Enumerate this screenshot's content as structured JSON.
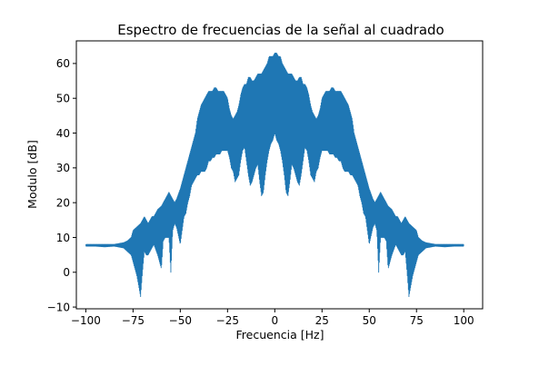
{
  "chart_data": {
    "type": "line",
    "title": "Espectro de frecuencias de la señal al cuadrado",
    "xlabel": "Frecuencia [Hz]",
    "ylabel": "Modulo [dB]",
    "xlim": [
      -105,
      110
    ],
    "ylim": [
      -10.5,
      66.5
    ],
    "xticks": [
      -100,
      -75,
      -50,
      -25,
      0,
      25,
      50,
      75,
      100
    ],
    "xtick_labels": [
      "−100",
      "−75",
      "−50",
      "−25",
      "0",
      "25",
      "50",
      "75",
      "100"
    ],
    "yticks": [
      -10,
      0,
      10,
      20,
      30,
      40,
      50,
      60
    ],
    "ytick_labels": [
      "−10",
      "0",
      "10",
      "20",
      "30",
      "40",
      "50",
      "60"
    ],
    "grid": false,
    "legend": "none",
    "line_color": "#1f77b4",
    "series": [
      {
        "x": [
          -100,
          -95,
          -90,
          -85,
          -80,
          -78,
          -76,
          -75,
          -73,
          -71,
          -70,
          -69,
          -68,
          -67,
          -66,
          -65,
          -64,
          -62,
          -60,
          -59,
          -58,
          -56,
          -55,
          -54,
          -53,
          -52,
          -50,
          -49,
          -48,
          -47,
          -46,
          -45,
          -44,
          -43,
          -42,
          -41,
          -40,
          -39,
          -38,
          -37,
          -36,
          -35,
          -34,
          -33,
          -32,
          -31,
          -30,
          -29,
          -28,
          -27,
          -26,
          -25,
          -24,
          -23,
          -22,
          -21,
          -20,
          -19,
          -18,
          -17,
          -16,
          -15,
          -14,
          -13,
          -12,
          -11,
          -10,
          -9,
          -8,
          -7,
          -6,
          -5,
          -4,
          -3,
          -2,
          -1,
          0,
          1,
          2,
          3,
          4,
          5,
          6,
          7,
          8,
          9,
          10,
          11,
          12,
          13,
          14,
          15,
          16,
          17,
          18,
          19,
          20,
          21,
          22,
          23,
          24,
          25,
          26,
          27,
          28,
          29,
          30,
          31,
          32,
          33,
          34,
          35,
          36,
          37,
          38,
          39,
          40,
          41,
          42,
          43,
          44,
          45,
          46,
          47,
          48,
          49,
          50,
          52,
          53,
          54,
          55,
          56,
          58,
          59,
          60,
          62,
          64,
          65,
          66,
          67,
          68,
          69,
          70,
          71,
          73,
          75,
          76,
          78,
          80,
          85,
          90,
          95,
          100
        ],
        "upper": [
          8,
          8,
          8,
          8,
          8.5,
          9,
          10,
          12,
          13,
          14,
          15,
          16,
          15,
          14,
          15,
          16,
          16,
          18,
          19,
          20,
          21,
          23,
          22,
          21,
          20,
          21,
          24,
          26,
          28,
          30,
          32,
          34,
          36,
          38,
          40,
          44,
          46,
          48,
          49,
          50,
          51,
          52,
          52,
          52,
          53,
          53,
          52,
          52,
          52,
          52,
          51,
          50,
          47,
          45,
          44,
          45,
          46,
          48,
          51,
          53,
          54,
          54,
          56,
          56,
          55,
          55,
          56,
          57,
          57,
          57,
          58,
          59,
          60,
          62,
          62,
          62,
          63,
          63,
          62,
          62,
          60,
          59,
          58,
          57,
          57,
          57,
          56,
          55,
          55,
          56,
          56,
          54,
          54,
          53,
          51,
          48,
          46,
          45,
          44,
          45,
          47,
          50,
          51,
          52,
          52,
          52,
          53,
          53,
          52,
          52,
          52,
          52,
          51,
          50,
          49,
          48,
          46,
          44,
          40,
          38,
          36,
          34,
          32,
          30,
          28,
          26,
          24,
          21,
          20,
          21,
          22,
          23,
          21,
          20,
          19,
          18,
          16,
          16,
          15,
          14,
          15,
          16,
          15,
          14,
          13,
          12,
          10,
          9,
          8.5,
          8,
          8,
          8,
          8
        ],
        "lower": [
          7.5,
          7.5,
          7.3,
          7.5,
          7,
          6,
          5,
          3,
          -1,
          -7,
          0,
          6,
          5,
          5,
          6,
          7,
          8,
          5,
          1,
          9,
          10,
          10,
          0,
          12,
          14,
          13,
          8,
          12,
          16,
          17,
          20,
          22,
          25,
          26,
          27,
          28,
          28,
          29,
          29,
          29,
          30,
          32,
          32,
          33,
          33,
          34,
          34,
          34,
          35,
          35,
          35,
          35,
          33,
          30,
          29,
          26,
          27,
          28,
          32,
          35,
          36,
          32,
          28,
          25,
          26,
          28,
          30,
          31,
          26,
          22,
          23,
          28,
          32,
          35,
          37,
          38,
          40,
          38,
          37,
          35,
          32,
          28,
          23,
          22,
          26,
          31,
          30,
          28,
          26,
          25,
          28,
          32,
          36,
          35,
          32,
          28,
          27,
          26,
          29,
          30,
          33,
          35,
          35,
          35,
          35,
          34,
          34,
          34,
          33,
          33,
          32,
          32,
          30,
          29,
          29,
          29,
          28,
          28,
          27,
          26,
          25,
          22,
          20,
          17,
          16,
          12,
          8,
          13,
          14,
          12,
          0,
          10,
          10,
          9,
          1,
          5,
          8,
          7,
          6,
          5,
          5,
          6,
          0,
          -7,
          -1,
          3,
          5,
          6,
          7,
          7.5,
          7.3,
          7.5,
          7.5
        ]
      }
    ]
  }
}
